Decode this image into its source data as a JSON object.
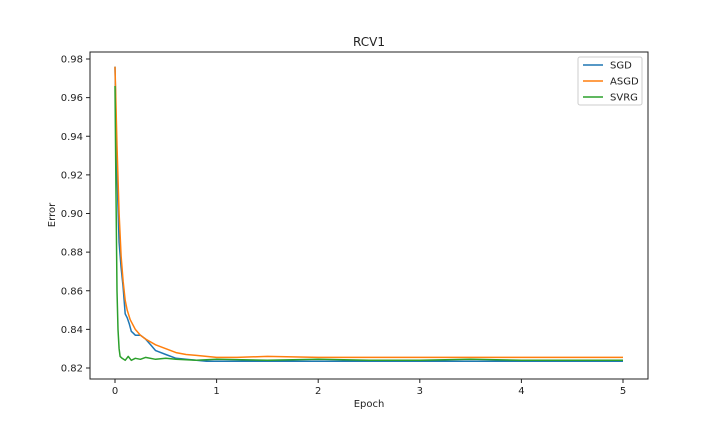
{
  "chart_data": {
    "type": "line",
    "title": "RCV1",
    "xlabel": "Epoch",
    "ylabel": "Error",
    "xlim": [
      -0.25,
      5.25
    ],
    "ylim": [
      0.8165,
      0.9815
    ],
    "xticks": [
      0,
      1,
      2,
      3,
      4,
      5
    ],
    "xtick_labels": [
      "0",
      "1",
      "2",
      "3",
      "4",
      "5"
    ],
    "yticks": [
      0.82,
      0.84,
      0.86,
      0.88,
      0.9,
      0.92,
      0.94,
      0.96,
      0.98
    ],
    "ytick_labels": [
      "0.82",
      "0.84",
      "0.86",
      "0.88",
      "0.90",
      "0.92",
      "0.94",
      "0.96",
      "0.98"
    ],
    "grid": false,
    "legend_position": "upper right",
    "series": [
      {
        "name": "SGD",
        "color": "#1f77b4",
        "x": [
          0,
          0.02,
          0.04,
          0.06,
          0.08,
          0.1,
          0.12,
          0.14,
          0.16,
          0.18,
          0.2,
          0.25,
          0.3,
          0.35,
          0.4,
          0.5,
          0.6,
          0.7,
          0.8,
          0.9,
          1.0,
          1.5,
          2.0,
          2.5,
          3.0,
          3.5,
          4.0,
          4.5,
          5.0
        ],
        "y": [
          0.976,
          0.92,
          0.885,
          0.872,
          0.862,
          0.848,
          0.846,
          0.843,
          0.839,
          0.838,
          0.837,
          0.837,
          0.835,
          0.832,
          0.829,
          0.827,
          0.825,
          0.8245,
          0.824,
          0.8235,
          0.8235,
          0.8235,
          0.8235,
          0.8235,
          0.8235,
          0.8235,
          0.8235,
          0.8235,
          0.8235
        ]
      },
      {
        "name": "ASGD",
        "color": "#ff7f0e",
        "x": [
          0,
          0.02,
          0.04,
          0.06,
          0.08,
          0.1,
          0.12,
          0.15,
          0.2,
          0.25,
          0.3,
          0.4,
          0.5,
          0.6,
          0.7,
          0.8,
          0.9,
          1.0,
          1.2,
          1.5,
          2.0,
          2.5,
          3.0,
          3.5,
          4.0,
          4.5,
          5.0
        ],
        "y": [
          0.976,
          0.935,
          0.9,
          0.878,
          0.865,
          0.855,
          0.85,
          0.845,
          0.84,
          0.837,
          0.835,
          0.832,
          0.83,
          0.828,
          0.827,
          0.8265,
          0.826,
          0.8255,
          0.8255,
          0.826,
          0.8255,
          0.8255,
          0.8255,
          0.8255,
          0.8255,
          0.8255,
          0.8255
        ]
      },
      {
        "name": "SVRG",
        "color": "#2ca02c",
        "x": [
          0,
          0.01,
          0.02,
          0.03,
          0.04,
          0.05,
          0.07,
          0.1,
          0.13,
          0.16,
          0.2,
          0.25,
          0.3,
          0.4,
          0.5,
          0.6,
          0.8,
          1.0,
          1.5,
          2.0,
          2.5,
          3.0,
          3.5,
          4.0,
          4.5,
          5.0
        ],
        "y": [
          0.966,
          0.91,
          0.86,
          0.84,
          0.83,
          0.826,
          0.825,
          0.824,
          0.826,
          0.824,
          0.825,
          0.8245,
          0.8255,
          0.8245,
          0.825,
          0.8245,
          0.824,
          0.8245,
          0.824,
          0.8245,
          0.824,
          0.824,
          0.8245,
          0.824,
          0.824,
          0.824
        ]
      }
    ]
  }
}
